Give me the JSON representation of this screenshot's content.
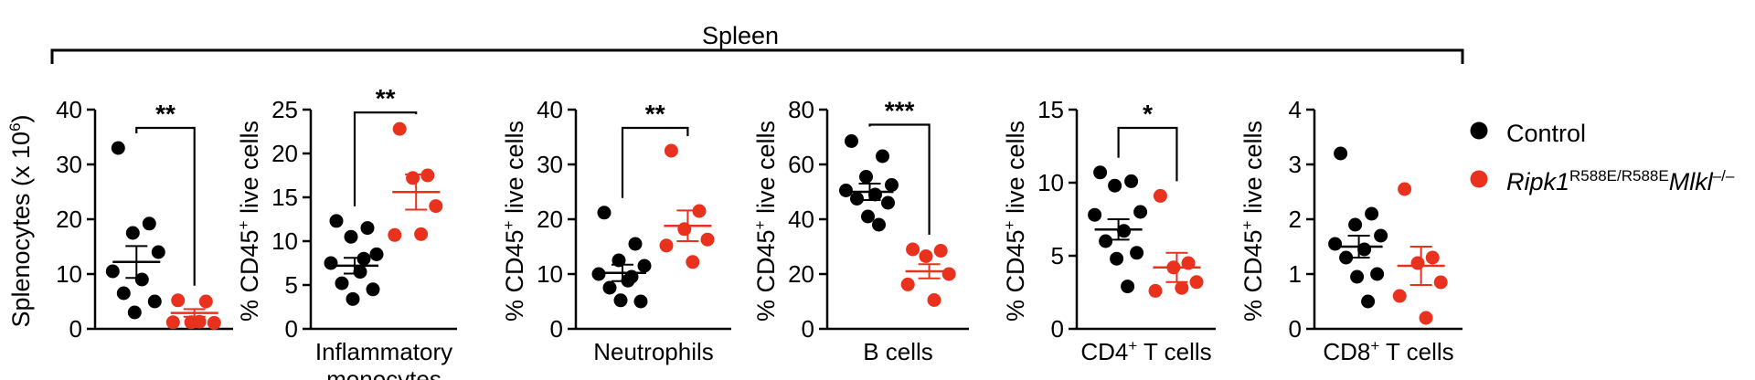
{
  "header": {
    "bracket_label": "Spleen"
  },
  "legend": {
    "placement": "right",
    "entries": [
      {
        "label": "Control",
        "color": "#000000"
      },
      {
        "label_main": "Ripk1",
        "label_sup1": "R588E/R588E",
        "label_main2": "Mlkl",
        "label_sup2": "–/–",
        "color": "#e8321e"
      }
    ]
  },
  "chart_data": [
    {
      "type": "scatter",
      "ylabel_main": "Splenocytes (x 10",
      "ylabel_sup": "6",
      "ylabel_end": ")",
      "xlabel_main": "",
      "xlabel_sup": "",
      "xlabel_end": "",
      "ylim": [
        0,
        40
      ],
      "yticks": [
        0,
        10,
        20,
        30,
        40
      ],
      "significance": "**",
      "series": [
        {
          "color": "#000000",
          "mean": 12.2,
          "sem": 2.9,
          "values": [
            33,
            19.2,
            17.5,
            14,
            10.5,
            9,
            6.5,
            5,
            3
          ]
        },
        {
          "color": "#e8321e",
          "mean": 2.9,
          "sem": 0.7,
          "values": [
            5.2,
            5,
            1.2,
            1.1,
            1.2,
            1.3
          ]
        }
      ]
    },
    {
      "type": "scatter",
      "ylabel_main": "% CD45",
      "ylabel_sup": "+",
      "ylabel_end": " live cells",
      "xlabel_main": "Inflammatory",
      "xlabel_sup": "",
      "xlabel_end": "",
      "xlabel_line2": "monocytes",
      "ylim": [
        0,
        25
      ],
      "yticks": [
        0,
        5,
        10,
        15,
        20,
        25
      ],
      "significance": "**",
      "series": [
        {
          "color": "#000000",
          "mean": 7.2,
          "sem": 0.9,
          "values": [
            12.3,
            11.5,
            10.5,
            8.5,
            7.5,
            6.5,
            5.2,
            4.5,
            3.4,
            8
          ]
        },
        {
          "color": "#e8321e",
          "mean": 15.6,
          "sem": 2.0,
          "values": [
            22.8,
            17.5,
            17.2,
            14,
            10.7,
            10.8
          ]
        }
      ]
    },
    {
      "type": "scatter",
      "ylabel_main": "% CD45",
      "ylabel_sup": "+",
      "ylabel_end": " live cells",
      "xlabel_main": "Neutrophils",
      "xlabel_sup": "",
      "xlabel_end": "",
      "ylim": [
        0,
        40
      ],
      "yticks": [
        0,
        10,
        20,
        30,
        40
      ],
      "significance": "**",
      "series": [
        {
          "color": "#000000",
          "mean": 10.2,
          "sem": 1.5,
          "values": [
            21.2,
            15.5,
            12.5,
            11.5,
            10,
            8.8,
            7.5,
            5,
            5.2,
            9.5
          ]
        },
        {
          "color": "#e8321e",
          "mean": 18.8,
          "sem": 2.8,
          "values": [
            32.5,
            21.5,
            18.2,
            16.3,
            15.2,
            12.2
          ]
        }
      ]
    },
    {
      "type": "scatter",
      "ylabel_main": "% CD45",
      "ylabel_sup": "+",
      "ylabel_end": " live cells",
      "xlabel_main": "B cells",
      "xlabel_sup": "",
      "xlabel_end": "",
      "ylim": [
        0,
        80
      ],
      "yticks": [
        0,
        20,
        40,
        60,
        80
      ],
      "significance": "***",
      "series": [
        {
          "color": "#000000",
          "mean": 50,
          "sem": 3.0,
          "values": [
            68.5,
            63,
            55.5,
            52.5,
            50.5,
            49,
            47.5,
            46,
            41,
            38
          ]
        },
        {
          "color": "#e8321e",
          "mean": 21,
          "sem": 2.6,
          "values": [
            29,
            28.5,
            26.5,
            20,
            16.2,
            10.5
          ]
        }
      ]
    },
    {
      "type": "scatter",
      "ylabel_main": "% CD45",
      "ylabel_sup": "+",
      "ylabel_end": " live cells",
      "xlabel_main": "CD4",
      "xlabel_sup": "+",
      "xlabel_end": " T cells",
      "ylim": [
        0,
        15
      ],
      "yticks": [
        0,
        5,
        10,
        15
      ],
      "significance": "*",
      "series": [
        {
          "color": "#000000",
          "mean": 6.8,
          "sem": 0.7,
          "values": [
            10.7,
            10.1,
            9.8,
            8,
            7.8,
            6.7,
            6,
            5.2,
            4.8,
            2.9
          ]
        },
        {
          "color": "#e8321e",
          "mean": 4.2,
          "sem": 1.0,
          "values": [
            9.1,
            4.5,
            4.2,
            3.2,
            2.6,
            2.8
          ]
        }
      ]
    },
    {
      "type": "scatter",
      "ylabel_main": "% CD45",
      "ylabel_sup": "+",
      "ylabel_end": " live cells",
      "xlabel_main": "CD8",
      "xlabel_sup": "+",
      "xlabel_end": " T cells",
      "ylim": [
        0,
        4
      ],
      "yticks": [
        0,
        1,
        2,
        3,
        4
      ],
      "significance": "",
      "series": [
        {
          "color": "#000000",
          "mean": 1.5,
          "sem": 0.2,
          "values": [
            3.2,
            2.1,
            1.9,
            1.7,
            1.55,
            1.45,
            1.3,
            1.0,
            0.95,
            0.5
          ]
        },
        {
          "color": "#e8321e",
          "mean": 1.15,
          "sem": 0.35,
          "values": [
            2.55,
            1.3,
            1.2,
            0.85,
            0.6,
            0.2
          ]
        }
      ]
    }
  ]
}
